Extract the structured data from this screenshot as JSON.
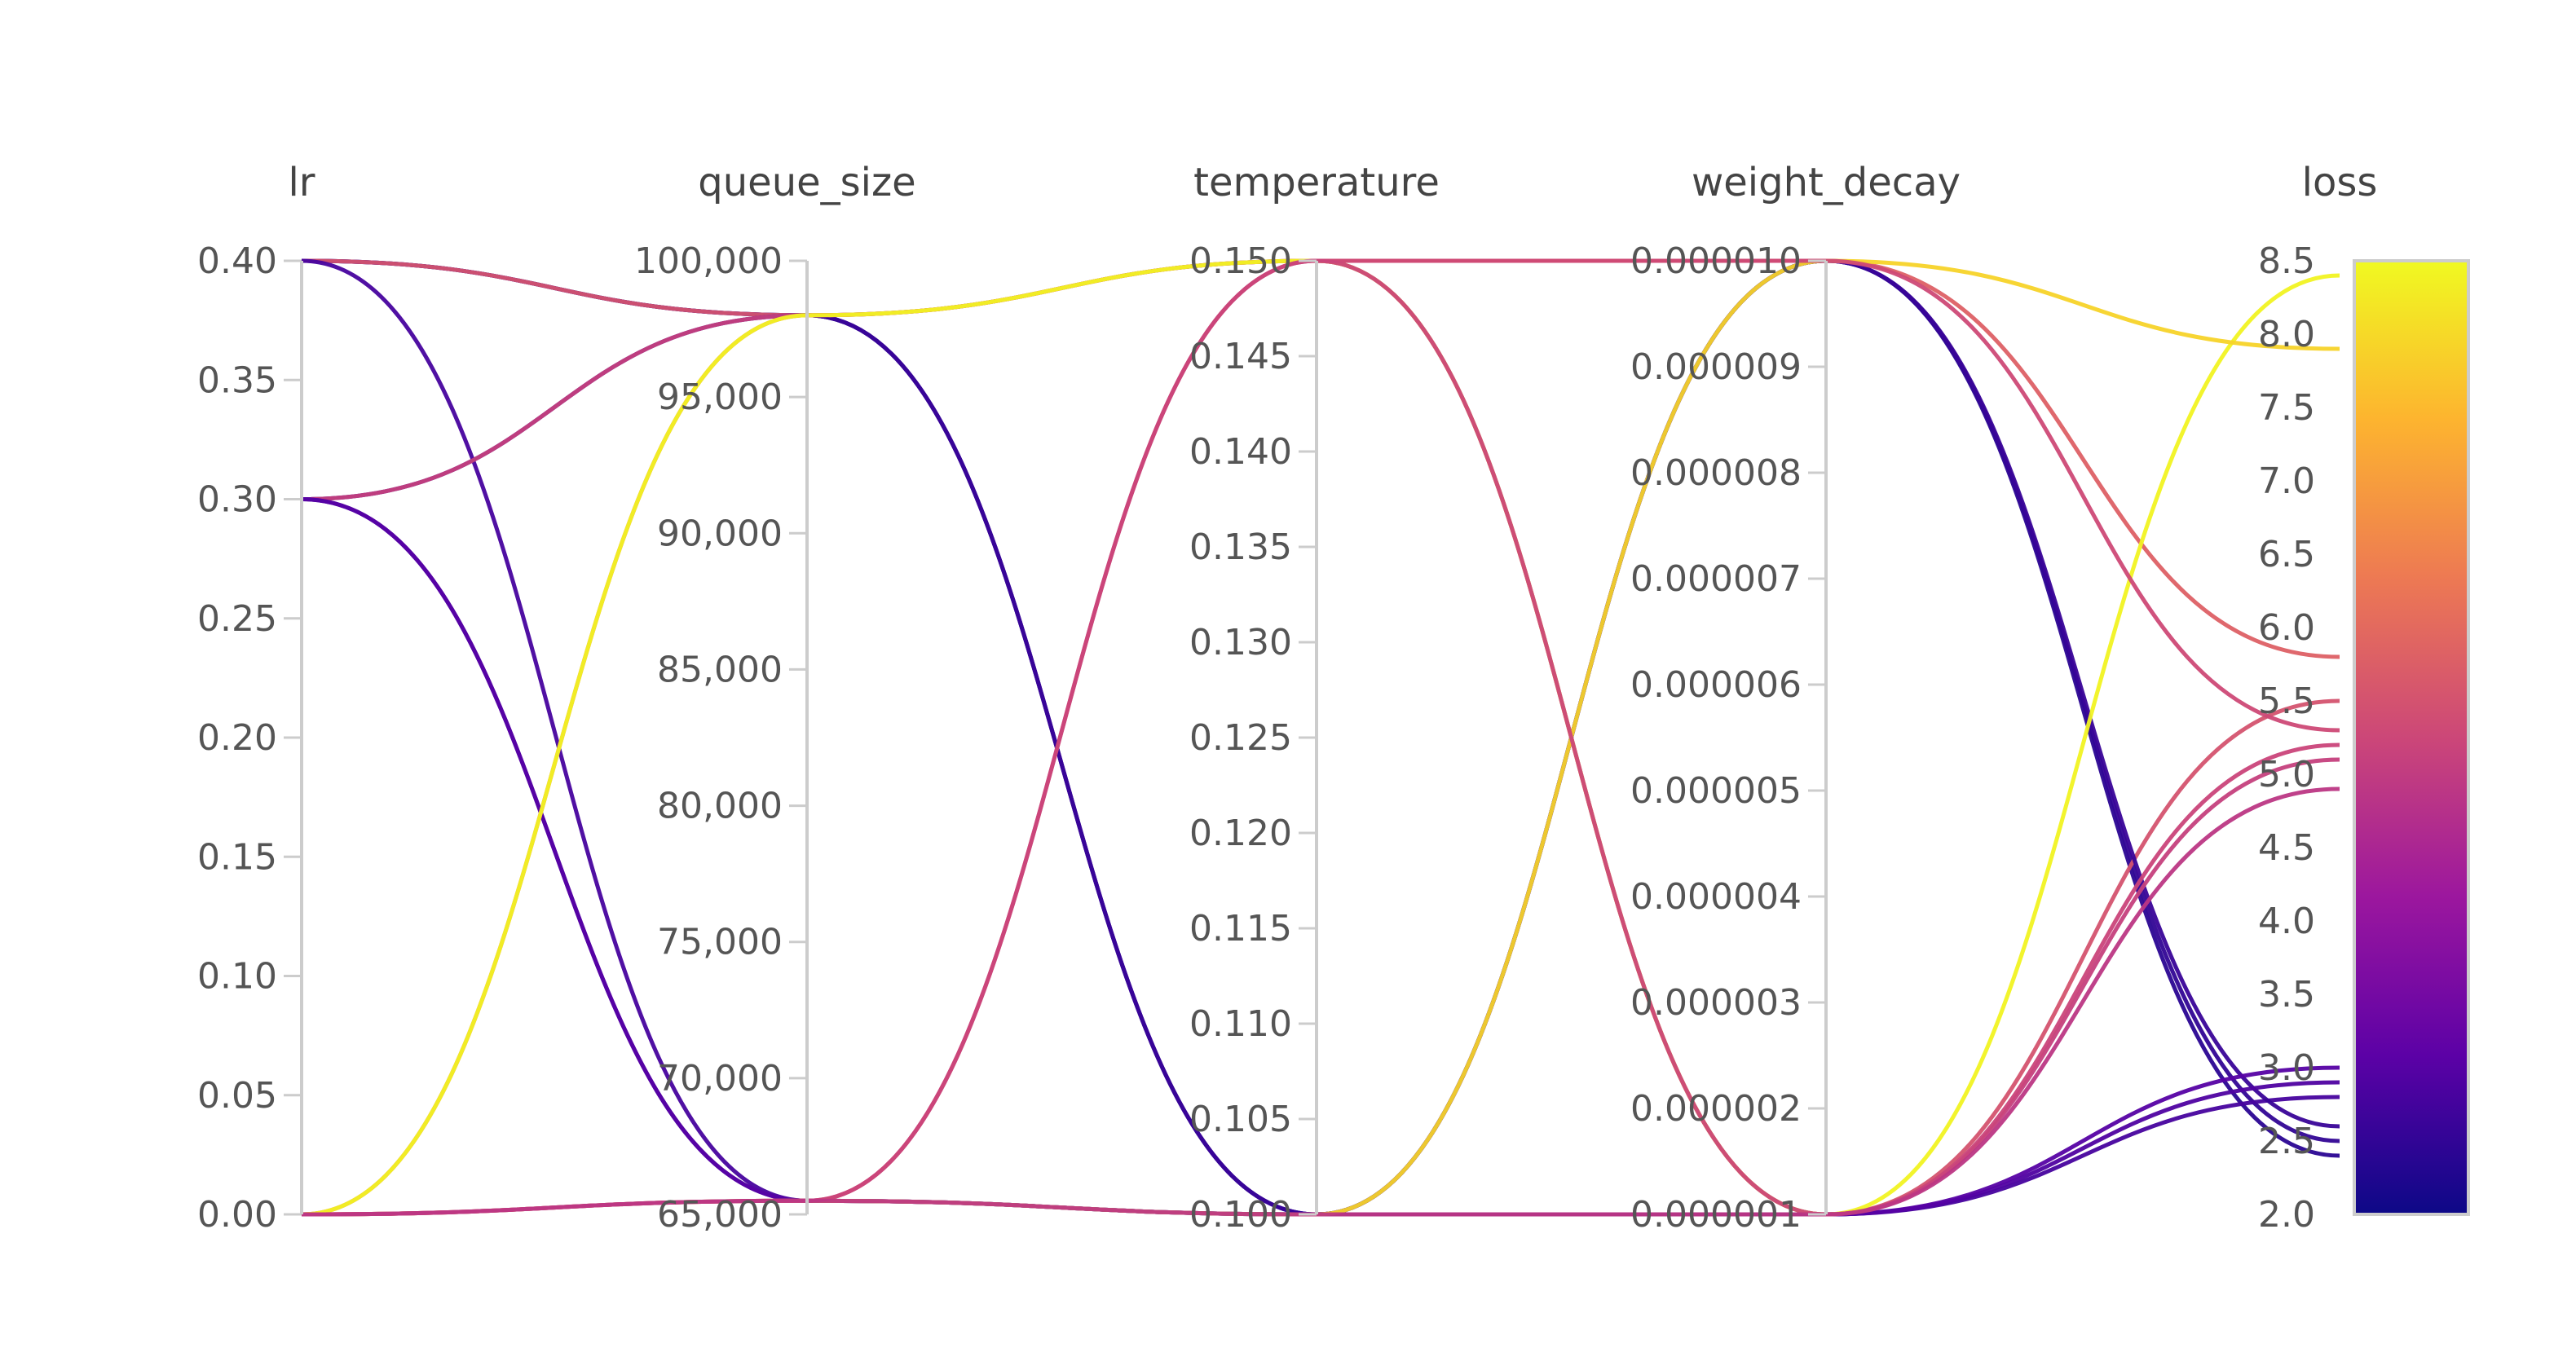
{
  "chart_data": {
    "type": "parallel_coordinates",
    "axes": [
      {
        "name": "lr",
        "range": [
          0,
          0.4
        ],
        "ticks": [
          0,
          0.05,
          0.1,
          0.15,
          0.2,
          0.25,
          0.3,
          0.35,
          0.4
        ],
        "tick_labels": [
          "0.00",
          "0.05",
          "0.10",
          "0.15",
          "0.20",
          "0.25",
          "0.30",
          "0.35",
          "0.40"
        ]
      },
      {
        "name": "queue_size",
        "range": [
          65000,
          100000
        ],
        "ticks": [
          65000,
          70000,
          75000,
          80000,
          85000,
          90000,
          95000,
          100000
        ],
        "tick_labels": [
          "65,000",
          "70,000",
          "75,000",
          "80,000",
          "85,000",
          "90,000",
          "95,000",
          "100,000"
        ]
      },
      {
        "name": "temperature",
        "range": [
          0.1,
          0.15
        ],
        "ticks": [
          0.1,
          0.105,
          0.11,
          0.115,
          0.12,
          0.125,
          0.13,
          0.135,
          0.14,
          0.145,
          0.15
        ],
        "tick_labels": [
          "0.100",
          "0.105",
          "0.110",
          "0.115",
          "0.120",
          "0.125",
          "0.130",
          "0.135",
          "0.140",
          "0.145",
          "0.150"
        ]
      },
      {
        "name": "weight_decay",
        "range": [
          1e-06,
          1e-05
        ],
        "ticks": [
          1e-06,
          2e-06,
          3e-06,
          4e-06,
          5e-06,
          6e-06,
          7e-06,
          8e-06,
          9e-06,
          1e-05
        ],
        "tick_labels": [
          "0.000001",
          "0.000002",
          "0.000003",
          "0.000004",
          "0.000005",
          "0.000006",
          "0.000007",
          "0.000008",
          "0.000009",
          "0.000010"
        ]
      },
      {
        "name": "loss",
        "range": [
          2.0,
          8.5
        ],
        "ticks": [
          2.0,
          2.5,
          3.0,
          3.5,
          4.0,
          4.5,
          5.0,
          5.5,
          6.0,
          6.5,
          7.0,
          7.5,
          8.0,
          8.5
        ],
        "tick_labels": [
          "2.0",
          "2.5",
          "3.0",
          "3.5",
          "4.0",
          "4.5",
          "5.0",
          "5.5",
          "6.0",
          "6.5",
          "7.0",
          "7.5",
          "8.0",
          "8.5"
        ]
      }
    ],
    "colorscale": {
      "name": "plasma",
      "range": [
        2.0,
        8.5
      ],
      "stops": [
        "#0d0887",
        "#5c01a6",
        "#9c179e",
        "#cc4778",
        "#ed7953",
        "#fdb42f",
        "#f0f921"
      ]
    },
    "runs": [
      {
        "lr": 0.4,
        "queue_size": 98000,
        "temperature": 0.1,
        "weight_decay": 1e-05,
        "loss": 2.4
      },
      {
        "lr": 0.4,
        "queue_size": 98000,
        "temperature": 0.1,
        "weight_decay": 1e-05,
        "loss": 2.5
      },
      {
        "lr": 0.4,
        "queue_size": 98000,
        "temperature": 0.15,
        "weight_decay": 1e-06,
        "loss": 5.5
      },
      {
        "lr": 0.4,
        "queue_size": 65500,
        "temperature": 0.1,
        "weight_decay": 1e-06,
        "loss": 2.8
      },
      {
        "lr": 0.3,
        "queue_size": 98000,
        "temperature": 0.1,
        "weight_decay": 1e-05,
        "loss": 2.6
      },
      {
        "lr": 0.3,
        "queue_size": 98000,
        "temperature": 0.15,
        "weight_decay": 1e-06,
        "loss": 5.1
      },
      {
        "lr": 0.3,
        "queue_size": 65500,
        "temperature": 0.1,
        "weight_decay": 1e-06,
        "loss": 2.9
      },
      {
        "lr": 0.3,
        "queue_size": 65500,
        "temperature": 0.1,
        "weight_decay": 1e-06,
        "loss": 3.0
      },
      {
        "lr": 0.0,
        "queue_size": 98000,
        "temperature": 0.15,
        "weight_decay": 1e-05,
        "loss": 5.8
      },
      {
        "lr": 0.0,
        "queue_size": 98000,
        "temperature": 0.15,
        "weight_decay": 1e-06,
        "loss": 8.4
      },
      {
        "lr": 0.0,
        "queue_size": 65500,
        "temperature": 0.1,
        "weight_decay": 1e-05,
        "loss": 7.9
      },
      {
        "lr": 0.0,
        "queue_size": 65500,
        "temperature": 0.15,
        "weight_decay": 1e-05,
        "loss": 5.3
      },
      {
        "lr": 0.0,
        "queue_size": 65500,
        "temperature": 0.15,
        "weight_decay": 1e-06,
        "loss": 5.2
      },
      {
        "lr": 0.0,
        "queue_size": 65500,
        "temperature": 0.1,
        "weight_decay": 1e-06,
        "loss": 4.9
      }
    ]
  }
}
